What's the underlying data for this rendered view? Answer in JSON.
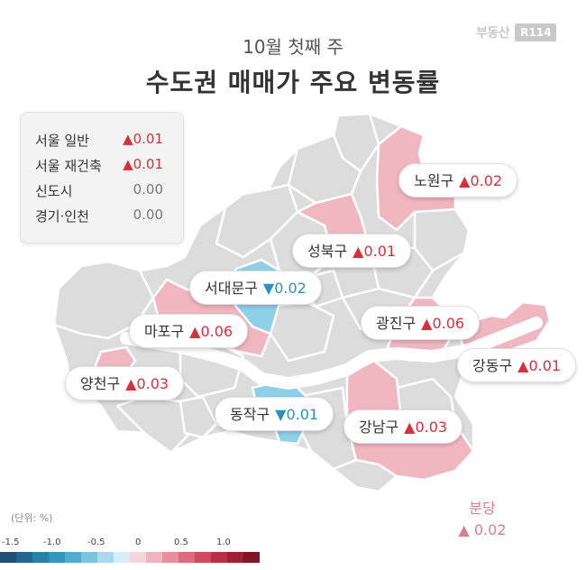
{
  "brand": {
    "text": "부동산",
    "box": "R114"
  },
  "subtitle": "10월 첫째 주",
  "title": "수도권 매매가 주요 변동률",
  "legend": [
    {
      "name": "서울 일반",
      "value": "▲0.01",
      "dir": "up"
    },
    {
      "name": "서울 재건축",
      "value": "▲0.01",
      "dir": "up"
    },
    {
      "name": "신도시",
      "value": "0.00",
      "dir": "flat"
    },
    {
      "name": "경기·인천",
      "value": "0.00",
      "dir": "flat"
    }
  ],
  "districts": {
    "nowon": {
      "name": "노원구",
      "value": "▲0.02",
      "dir": "up"
    },
    "seongbuk": {
      "name": "성북구",
      "value": "▲0.01",
      "dir": "up"
    },
    "seodaemun": {
      "name": "서대문구",
      "value": "▼0.02",
      "dir": "down"
    },
    "mapo": {
      "name": "마포구",
      "value": "▲0.06",
      "dir": "up"
    },
    "gwangjin": {
      "name": "광진구",
      "value": "▲0.06",
      "dir": "up"
    },
    "gangdong": {
      "name": "강동구",
      "value": "▲0.01",
      "dir": "up"
    },
    "yangcheon": {
      "name": "양천구",
      "value": "▲0.03",
      "dir": "up"
    },
    "dongjak": {
      "name": "동작구",
      "value": "▼0.01",
      "dir": "down"
    },
    "gangnam": {
      "name": "강남구",
      "value": "▲0.03",
      "dir": "up"
    }
  },
  "bundang": {
    "name": "분당",
    "value": "▲ 0.02",
    "dir": "up"
  },
  "scale": {
    "unit": "(단위: %)",
    "ticks": [
      "-1.5",
      "-1.0",
      "-0.5",
      "0",
      "0.5",
      "1.0"
    ],
    "colors": [
      "#1f4f73",
      "#24668e",
      "#2a80a6",
      "#3596bd",
      "#52abd0",
      "#7cc3df",
      "#a9d9ec",
      "#d6eef7",
      "#f7d3da",
      "#f1b3bd",
      "#e88f9d",
      "#dd6b7d",
      "#cf4a5e",
      "#bb2f45",
      "#9f1f35",
      "#801528"
    ]
  },
  "map_colors": {
    "gray": "#dcdcdc",
    "pink": "#f0b7c1",
    "blue": "#8fd0e8",
    "river": "#ffffff"
  }
}
